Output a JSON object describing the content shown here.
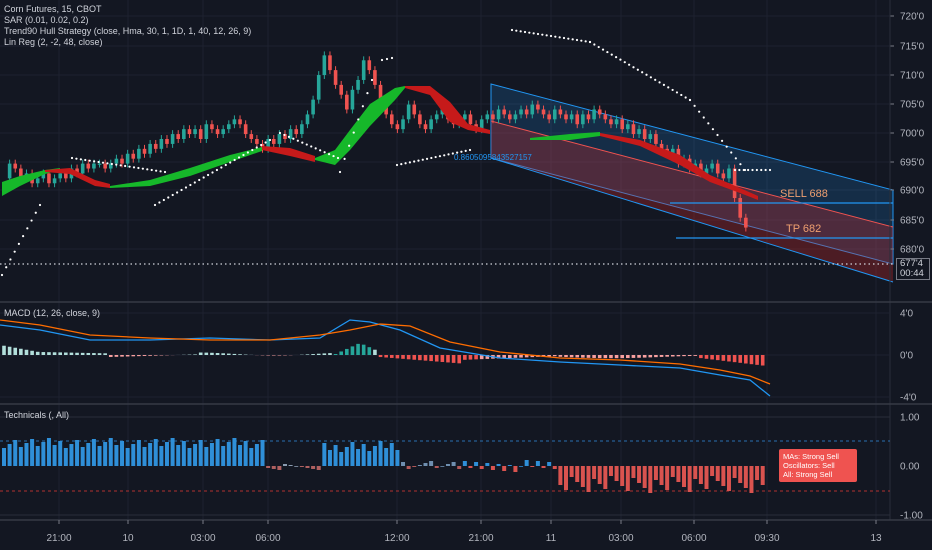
{
  "main_legend": [
    "Corn Futures, 15, CBOT",
    "SAR (0.01, 0.02, 0.2)",
    "Trend90 Hull Strategy (close, Hma, 30, 1, 1D, 1, 40, 12, 26, 9)",
    "Lin Reg (2, -2, 48, close)"
  ],
  "price_axis": [
    "720'0",
    "715'0",
    "710'0",
    "705'0",
    "700'0",
    "695'0",
    "690'0",
    "685'0",
    "680'0"
  ],
  "last_price": {
    "value": "677'4",
    "countdown": "00:44"
  },
  "regression_label": "0.8605095843527157",
  "orders": [
    {
      "label": "SELL 688",
      "color": "#f0a070"
    },
    {
      "label": "TP 682",
      "color": "#f0a070"
    }
  ],
  "macd": {
    "title": "MACD (12, 26, close, 9)",
    "axis": [
      "4'0",
      "0'0",
      "-4'0"
    ]
  },
  "technicals": {
    "title": "Technicals (, All)",
    "axis": [
      "1.00",
      "0.00",
      "-1.00"
    ],
    "box": {
      "mas": "MAs:      Strong Sell",
      "osc": "Oscillators: Sell",
      "all": "All:  Strong Sell"
    }
  },
  "time_axis": [
    "21:00",
    "10",
    "03:00",
    "06:00",
    "12:00",
    "21:00",
    "11",
    "03:00",
    "06:00",
    "09:30",
    "13"
  ],
  "colors": {
    "bull": "#26a69a",
    "bear": "#ef5350",
    "hull_green": "#16b82a",
    "hull_red": "#c61a1a",
    "channel_blue": "#2196f3",
    "tech_blue": "#2f8fd8",
    "tech_red": "#d9534f"
  }
}
